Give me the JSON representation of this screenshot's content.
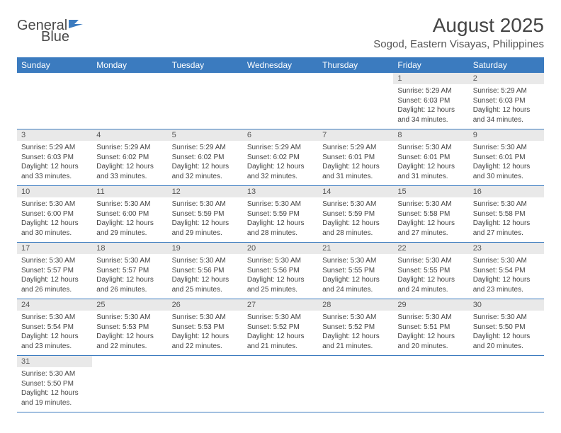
{
  "brand": {
    "line1": "General",
    "line2": "Blue"
  },
  "title": "August 2025",
  "location": "Sogod, Eastern Visayas, Philippines",
  "colors": {
    "accent": "#3b7bbf",
    "header_bg": "#3b7bbf",
    "daynum_bg": "#e9e9e9",
    "text": "#444444"
  },
  "weekdays": [
    "Sunday",
    "Monday",
    "Tuesday",
    "Wednesday",
    "Thursday",
    "Friday",
    "Saturday"
  ],
  "weeks": [
    [
      {
        "n": "",
        "lines": []
      },
      {
        "n": "",
        "lines": []
      },
      {
        "n": "",
        "lines": []
      },
      {
        "n": "",
        "lines": []
      },
      {
        "n": "",
        "lines": []
      },
      {
        "n": "1",
        "lines": [
          "Sunrise: 5:29 AM",
          "Sunset: 6:03 PM",
          "Daylight: 12 hours",
          "and 34 minutes."
        ]
      },
      {
        "n": "2",
        "lines": [
          "Sunrise: 5:29 AM",
          "Sunset: 6:03 PM",
          "Daylight: 12 hours",
          "and 34 minutes."
        ]
      }
    ],
    [
      {
        "n": "3",
        "lines": [
          "Sunrise: 5:29 AM",
          "Sunset: 6:03 PM",
          "Daylight: 12 hours",
          "and 33 minutes."
        ]
      },
      {
        "n": "4",
        "lines": [
          "Sunrise: 5:29 AM",
          "Sunset: 6:02 PM",
          "Daylight: 12 hours",
          "and 33 minutes."
        ]
      },
      {
        "n": "5",
        "lines": [
          "Sunrise: 5:29 AM",
          "Sunset: 6:02 PM",
          "Daylight: 12 hours",
          "and 32 minutes."
        ]
      },
      {
        "n": "6",
        "lines": [
          "Sunrise: 5:29 AM",
          "Sunset: 6:02 PM",
          "Daylight: 12 hours",
          "and 32 minutes."
        ]
      },
      {
        "n": "7",
        "lines": [
          "Sunrise: 5:29 AM",
          "Sunset: 6:01 PM",
          "Daylight: 12 hours",
          "and 31 minutes."
        ]
      },
      {
        "n": "8",
        "lines": [
          "Sunrise: 5:30 AM",
          "Sunset: 6:01 PM",
          "Daylight: 12 hours",
          "and 31 minutes."
        ]
      },
      {
        "n": "9",
        "lines": [
          "Sunrise: 5:30 AM",
          "Sunset: 6:01 PM",
          "Daylight: 12 hours",
          "and 30 minutes."
        ]
      }
    ],
    [
      {
        "n": "10",
        "lines": [
          "Sunrise: 5:30 AM",
          "Sunset: 6:00 PM",
          "Daylight: 12 hours",
          "and 30 minutes."
        ]
      },
      {
        "n": "11",
        "lines": [
          "Sunrise: 5:30 AM",
          "Sunset: 6:00 PM",
          "Daylight: 12 hours",
          "and 29 minutes."
        ]
      },
      {
        "n": "12",
        "lines": [
          "Sunrise: 5:30 AM",
          "Sunset: 5:59 PM",
          "Daylight: 12 hours",
          "and 29 minutes."
        ]
      },
      {
        "n": "13",
        "lines": [
          "Sunrise: 5:30 AM",
          "Sunset: 5:59 PM",
          "Daylight: 12 hours",
          "and 28 minutes."
        ]
      },
      {
        "n": "14",
        "lines": [
          "Sunrise: 5:30 AM",
          "Sunset: 5:59 PM",
          "Daylight: 12 hours",
          "and 28 minutes."
        ]
      },
      {
        "n": "15",
        "lines": [
          "Sunrise: 5:30 AM",
          "Sunset: 5:58 PM",
          "Daylight: 12 hours",
          "and 27 minutes."
        ]
      },
      {
        "n": "16",
        "lines": [
          "Sunrise: 5:30 AM",
          "Sunset: 5:58 PM",
          "Daylight: 12 hours",
          "and 27 minutes."
        ]
      }
    ],
    [
      {
        "n": "17",
        "lines": [
          "Sunrise: 5:30 AM",
          "Sunset: 5:57 PM",
          "Daylight: 12 hours",
          "and 26 minutes."
        ]
      },
      {
        "n": "18",
        "lines": [
          "Sunrise: 5:30 AM",
          "Sunset: 5:57 PM",
          "Daylight: 12 hours",
          "and 26 minutes."
        ]
      },
      {
        "n": "19",
        "lines": [
          "Sunrise: 5:30 AM",
          "Sunset: 5:56 PM",
          "Daylight: 12 hours",
          "and 25 minutes."
        ]
      },
      {
        "n": "20",
        "lines": [
          "Sunrise: 5:30 AM",
          "Sunset: 5:56 PM",
          "Daylight: 12 hours",
          "and 25 minutes."
        ]
      },
      {
        "n": "21",
        "lines": [
          "Sunrise: 5:30 AM",
          "Sunset: 5:55 PM",
          "Daylight: 12 hours",
          "and 24 minutes."
        ]
      },
      {
        "n": "22",
        "lines": [
          "Sunrise: 5:30 AM",
          "Sunset: 5:55 PM",
          "Daylight: 12 hours",
          "and 24 minutes."
        ]
      },
      {
        "n": "23",
        "lines": [
          "Sunrise: 5:30 AM",
          "Sunset: 5:54 PM",
          "Daylight: 12 hours",
          "and 23 minutes."
        ]
      }
    ],
    [
      {
        "n": "24",
        "lines": [
          "Sunrise: 5:30 AM",
          "Sunset: 5:54 PM",
          "Daylight: 12 hours",
          "and 23 minutes."
        ]
      },
      {
        "n": "25",
        "lines": [
          "Sunrise: 5:30 AM",
          "Sunset: 5:53 PM",
          "Daylight: 12 hours",
          "and 22 minutes."
        ]
      },
      {
        "n": "26",
        "lines": [
          "Sunrise: 5:30 AM",
          "Sunset: 5:53 PM",
          "Daylight: 12 hours",
          "and 22 minutes."
        ]
      },
      {
        "n": "27",
        "lines": [
          "Sunrise: 5:30 AM",
          "Sunset: 5:52 PM",
          "Daylight: 12 hours",
          "and 21 minutes."
        ]
      },
      {
        "n": "28",
        "lines": [
          "Sunrise: 5:30 AM",
          "Sunset: 5:52 PM",
          "Daylight: 12 hours",
          "and 21 minutes."
        ]
      },
      {
        "n": "29",
        "lines": [
          "Sunrise: 5:30 AM",
          "Sunset: 5:51 PM",
          "Daylight: 12 hours",
          "and 20 minutes."
        ]
      },
      {
        "n": "30",
        "lines": [
          "Sunrise: 5:30 AM",
          "Sunset: 5:50 PM",
          "Daylight: 12 hours",
          "and 20 minutes."
        ]
      }
    ],
    [
      {
        "n": "31",
        "lines": [
          "Sunrise: 5:30 AM",
          "Sunset: 5:50 PM",
          "Daylight: 12 hours",
          "and 19 minutes."
        ]
      },
      {
        "n": "",
        "lines": []
      },
      {
        "n": "",
        "lines": []
      },
      {
        "n": "",
        "lines": []
      },
      {
        "n": "",
        "lines": []
      },
      {
        "n": "",
        "lines": []
      },
      {
        "n": "",
        "lines": []
      }
    ]
  ]
}
